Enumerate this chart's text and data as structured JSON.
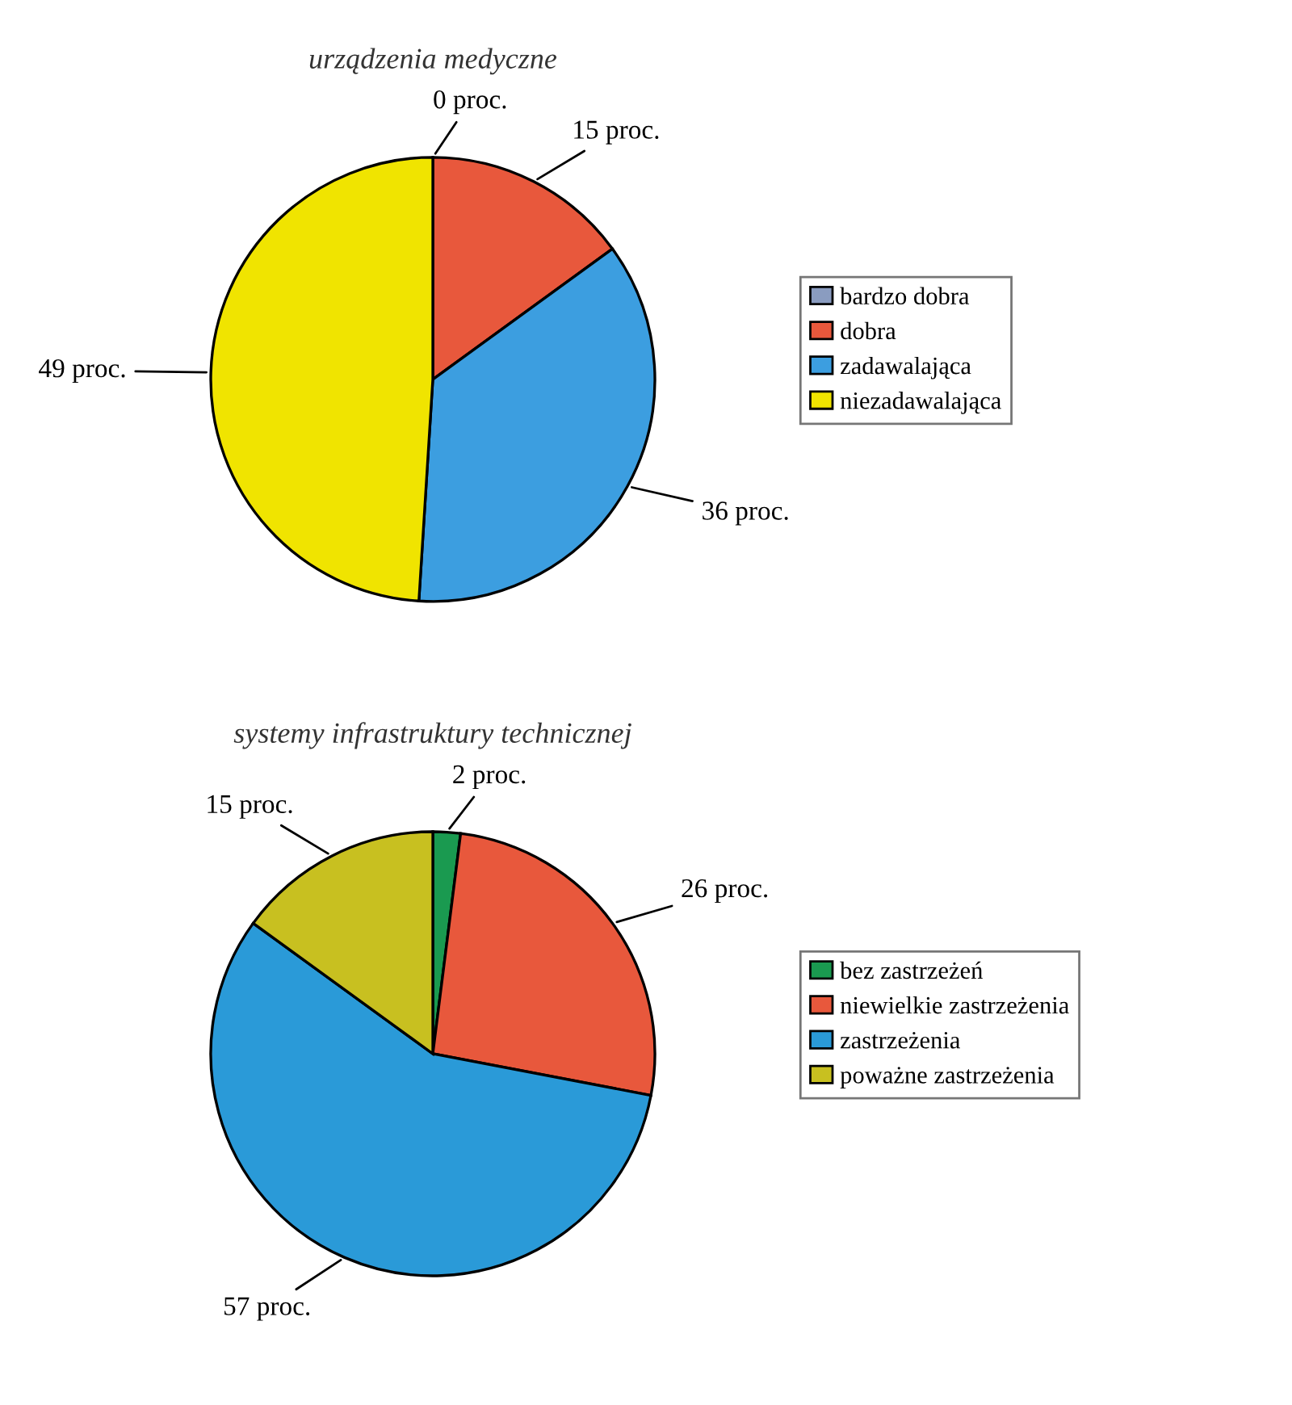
{
  "chart_data": [
    {
      "type": "pie",
      "title": "urządzenia medyczne",
      "categories": [
        "bardzo dobra",
        "dobra",
        "zadawalająca",
        "niezadawalająca"
      ],
      "values": [
        0,
        15,
        36,
        49
      ],
      "value_labels": [
        "0 proc.",
        "15 proc.",
        "36 proc.",
        "49 proc."
      ],
      "colors": [
        "#8a9cc0",
        "#e8583c",
        "#3c9ee0",
        "#f0e400"
      ],
      "legend": "right"
    },
    {
      "type": "pie",
      "title": "systemy infrastruktury technicznej",
      "categories": [
        "bez zastrzeżeń",
        "niewielkie zastrzeżenia",
        "zastrzeżenia",
        "poważne zastrzeżenia"
      ],
      "values": [
        2,
        26,
        57,
        15
      ],
      "value_labels": [
        "2 proc.",
        "26 proc.",
        "57 proc.",
        "15 proc."
      ],
      "colors": [
        "#1a9a50",
        "#e8583c",
        "#2a9ad8",
        "#c8c020"
      ],
      "legend": "right"
    }
  ]
}
